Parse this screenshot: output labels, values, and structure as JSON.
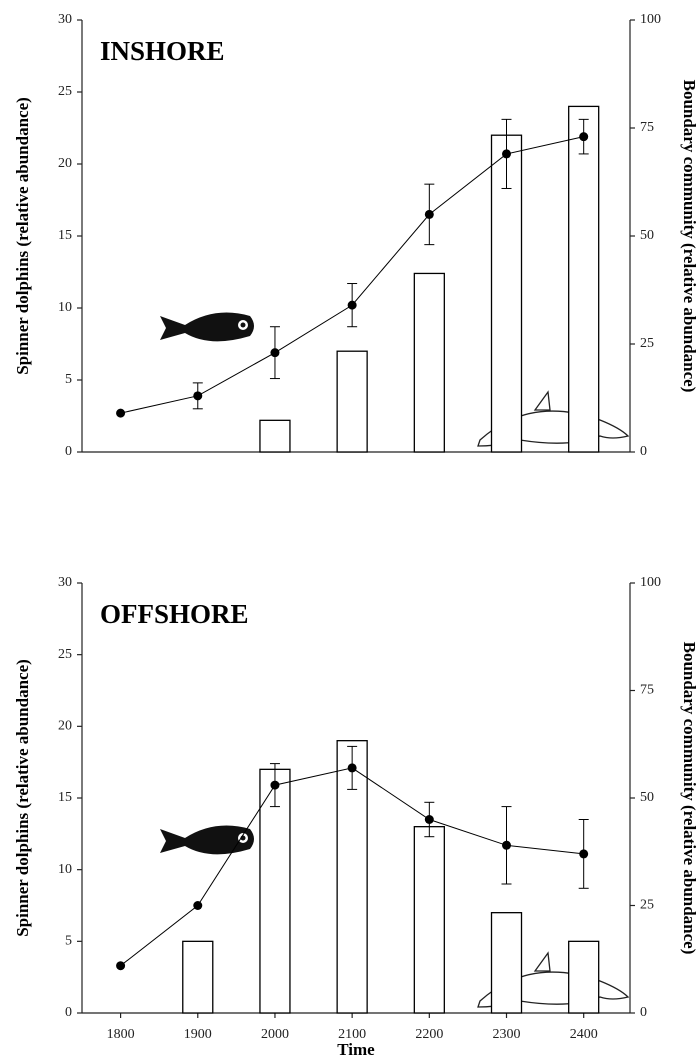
{
  "chart_data": [
    {
      "type": "bar-line",
      "title": "INSHORE",
      "ylabel": "Spinner dolphins (relative abundance)",
      "y2label": "Boundary community (relative abundance)",
      "x": [
        1800,
        1900,
        2000,
        2100,
        2200,
        2300,
        2400
      ],
      "xlim": [
        1750,
        2460
      ],
      "ylim": [
        0,
        30
      ],
      "yticks": [
        0,
        5,
        10,
        15,
        20,
        25,
        30
      ],
      "y2lim": [
        0,
        100
      ],
      "y2ticks": [
        0,
        25,
        50,
        75,
        100
      ],
      "series": [
        {
          "type": "bar",
          "color": "#000000",
          "values": [
            null,
            null,
            2.2,
            7,
            12.4,
            22,
            24
          ]
        },
        {
          "type": "line",
          "axis": "y2",
          "color": "#000000",
          "values": [
            9,
            13,
            23,
            34,
            55,
            69,
            73
          ],
          "errors": [
            null,
            3,
            6,
            5,
            7,
            8,
            4
          ]
        }
      ]
    },
    {
      "type": "bar-line",
      "title": "OFFSHORE",
      "ylabel": "Spinner dolphins (relative abundance)",
      "y2label": "Boundary community (relative abundance)",
      "xlabel": "Time",
      "x": [
        1800,
        1900,
        2000,
        2100,
        2200,
        2300,
        2400
      ],
      "xlim": [
        1750,
        2460
      ],
      "xticks": [
        1800,
        1900,
        2000,
        2100,
        2200,
        2300,
        2400
      ],
      "ylim": [
        0,
        30
      ],
      "yticks": [
        0,
        5,
        10,
        15,
        20,
        25,
        30
      ],
      "y2lim": [
        0,
        100
      ],
      "y2ticks": [
        0,
        25,
        50,
        75,
        100
      ],
      "series": [
        {
          "type": "bar",
          "color": "#000000",
          "values": [
            null,
            5,
            17,
            19,
            13,
            7,
            5
          ]
        },
        {
          "type": "line",
          "axis": "y2",
          "color": "#000000",
          "values": [
            11,
            25,
            53,
            57,
            45,
            39,
            37
          ],
          "errors": [
            null,
            null,
            5,
            5,
            4,
            9,
            8
          ]
        }
      ]
    }
  ]
}
